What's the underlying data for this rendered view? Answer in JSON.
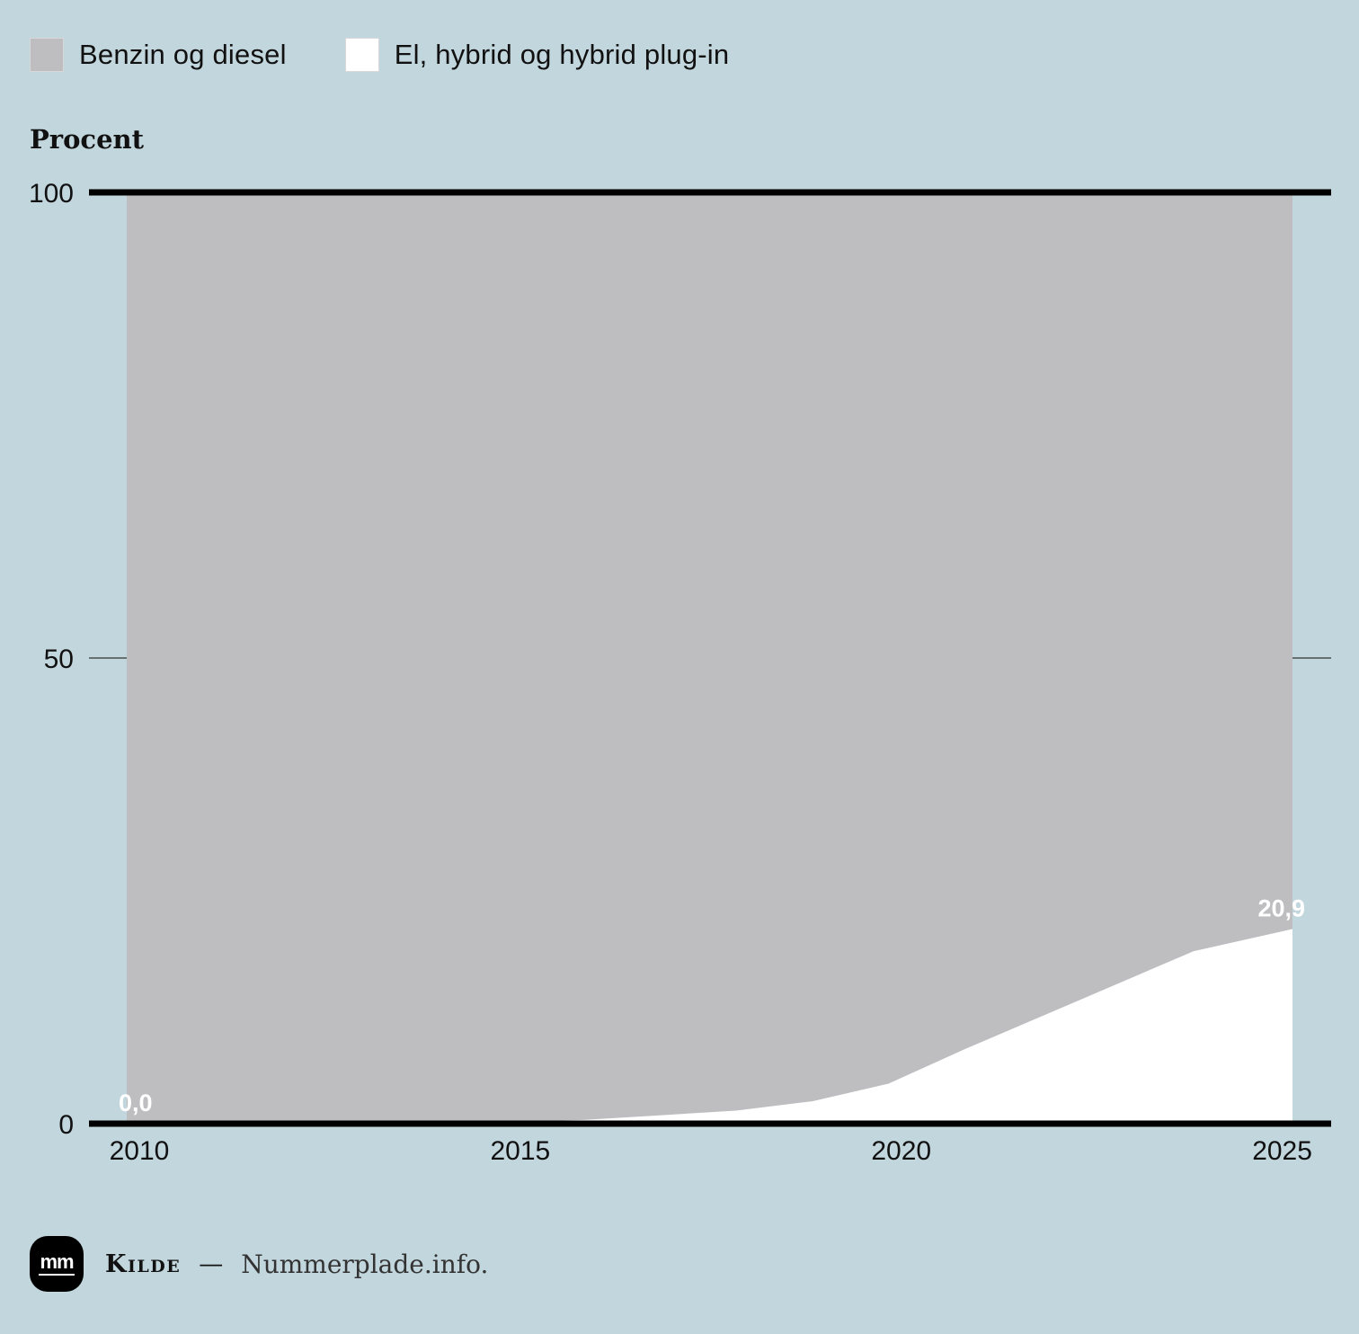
{
  "legend": {
    "items": [
      {
        "label": "Benzin og diesel",
        "color": "#bebec0"
      },
      {
        "label": "El, hybrid og hybrid plug-in",
        "color": "#ffffff"
      }
    ]
  },
  "axis": {
    "ylabel": "Procent"
  },
  "footer": {
    "logo_text": "mm",
    "source_kicker": "Kilde",
    "source_dash": "—",
    "source_text": "Nummerplade.info."
  },
  "chart_data": {
    "type": "area",
    "stacked": true,
    "title": "",
    "xlabel": "",
    "ylabel": "Procent",
    "xlim": [
      2010,
      2025.3
    ],
    "ylim": [
      0,
      100
    ],
    "x_ticks": [
      2010,
      2015,
      2020,
      2025
    ],
    "y_ticks": [
      0,
      50,
      100
    ],
    "x": [
      2010,
      2011,
      2012,
      2013,
      2014,
      2015,
      2016,
      2017,
      2018,
      2019,
      2020,
      2021,
      2022,
      2023,
      2024,
      2025.3
    ],
    "series": [
      {
        "name": "El, hybrid og hybrid plug-in",
        "color": "#ffffff",
        "values": [
          0.0,
          0.0,
          0.0,
          0.0,
          0.0,
          0.2,
          0.4,
          0.9,
          1.4,
          2.4,
          4.3,
          8.0,
          11.5,
          15.0,
          18.5,
          20.9
        ]
      },
      {
        "name": "Benzin og diesel",
        "color": "#bebec0",
        "values": [
          100.0,
          100.0,
          100.0,
          100.0,
          100.0,
          99.8,
          99.6,
          99.1,
          98.6,
          97.6,
          95.7,
          92.0,
          88.5,
          85.0,
          81.5,
          79.1
        ]
      }
    ],
    "annotations": [
      {
        "x": 2010,
        "y": 0.0,
        "text": "0,0"
      },
      {
        "x": 2025.3,
        "y": 20.9,
        "text": "20,9"
      }
    ],
    "grid": true,
    "legend_position": "top-left"
  }
}
